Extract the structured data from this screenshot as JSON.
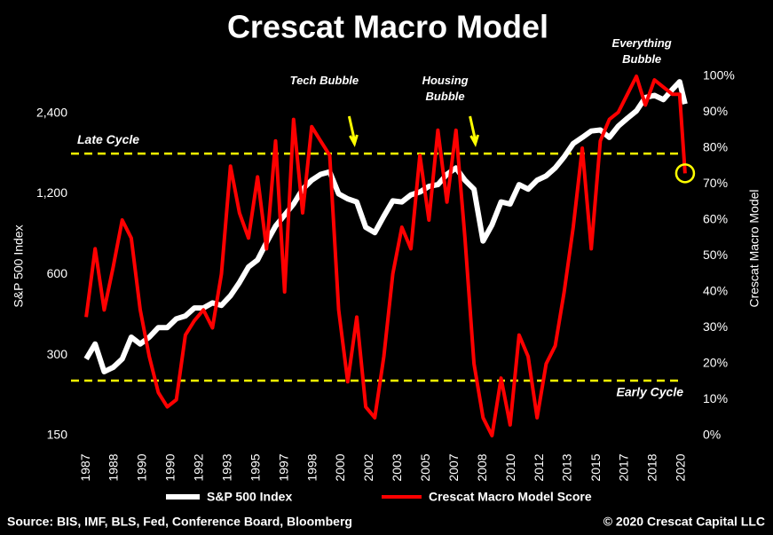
{
  "chart_data": {
    "type": "line",
    "title": "Crescat Macro Model",
    "ylabel": "S&P 500 Index",
    "y2label": "Crescat Macro Model",
    "source": "Source: BIS, IMF, BLS, Fed, Conference Board, Bloomberg",
    "copyright": "© 2020 Crescat Capital LLC",
    "yscale": "log",
    "xlim": [
      1986.8,
      2020.4
    ],
    "xticks": [
      {
        "value": 1987,
        "label": "1987"
      },
      {
        "value": 1988.57,
        "label": "1988"
      },
      {
        "value": 1990.14,
        "label": "1990"
      },
      {
        "value": 1991.71,
        "label": "1990"
      },
      {
        "value": 1993.29,
        "label": "1992"
      },
      {
        "value": 1994.86,
        "label": "1993"
      },
      {
        "value": 1996.43,
        "label": "1995"
      },
      {
        "value": 1998,
        "label": "1997"
      },
      {
        "value": 1999.57,
        "label": "1998"
      },
      {
        "value": 2001.14,
        "label": "2000"
      },
      {
        "value": 2002.71,
        "label": "2002"
      },
      {
        "value": 2004.29,
        "label": "2003"
      },
      {
        "value": 2005.86,
        "label": "2005"
      },
      {
        "value": 2007.43,
        "label": "2007"
      },
      {
        "value": 2009,
        "label": "2008"
      },
      {
        "value": 2010.57,
        "label": "2010"
      },
      {
        "value": 2012.14,
        "label": "2012"
      },
      {
        "value": 2013.71,
        "label": "2013"
      },
      {
        "value": 2015.29,
        "label": "2015"
      },
      {
        "value": 2016.86,
        "label": "2017"
      },
      {
        "value": 2018.43,
        "label": "2018"
      },
      {
        "value": 2020,
        "label": "2020"
      }
    ],
    "ylim": [
      150,
      3300
    ],
    "yticks": [
      150,
      300,
      600,
      {
        "value": 1200,
        "label": "1,200"
      },
      {
        "value": 2400,
        "label": "2,400"
      }
    ],
    "y2lim": [
      0,
      100
    ],
    "y2ticks": [
      {
        "value": 0,
        "label": "0%"
      },
      {
        "value": 10,
        "label": "10%"
      },
      {
        "value": 20,
        "label": "20%"
      },
      {
        "value": 30,
        "label": "30%"
      },
      {
        "value": 40,
        "label": "40%"
      },
      {
        "value": 50,
        "label": "50%"
      },
      {
        "value": 60,
        "label": "60%"
      },
      {
        "value": 70,
        "label": "70%"
      },
      {
        "value": 80,
        "label": "80%"
      },
      {
        "value": 90,
        "label": "90%"
      },
      {
        "value": 100,
        "label": "100%"
      }
    ],
    "x": [
      1987,
      1987.5,
      1988,
      1988.5,
      1989,
      1989.5,
      1990,
      1990.5,
      1991,
      1991.5,
      1992,
      1992.5,
      1993,
      1993.5,
      1994,
      1994.5,
      1995,
      1995.5,
      1996,
      1996.5,
      1997,
      1997.5,
      1998,
      1998.5,
      1999,
      1999.5,
      2000,
      2000.5,
      2001,
      2001.5,
      2002,
      2002.5,
      2003,
      2003.5,
      2004,
      2004.5,
      2005,
      2005.5,
      2006,
      2006.5,
      2007,
      2007.5,
      2008,
      2008.5,
      2009,
      2009.5,
      2010,
      2010.5,
      2011,
      2011.5,
      2012,
      2012.5,
      2013,
      2013.5,
      2014,
      2014.5,
      2015,
      2015.5,
      2016,
      2016.5,
      2017,
      2017.5,
      2018,
      2018.5,
      2019,
      2019.5,
      2019.9,
      2020.2
    ],
    "series": [
      {
        "name": "S&P 500 Index",
        "color": "#ffffff",
        "axis": "y",
        "values": [
          290,
          330,
          260,
          270,
          290,
          350,
          330,
          350,
          380,
          380,
          410,
          420,
          450,
          450,
          470,
          460,
          500,
          560,
          640,
          680,
          790,
          910,
          1000,
          1100,
          1250,
          1350,
          1420,
          1450,
          1200,
          1150,
          1120,
          900,
          860,
          990,
          1130,
          1120,
          1190,
          1220,
          1280,
          1300,
          1420,
          1500,
          1350,
          1250,
          800,
          920,
          1120,
          1100,
          1300,
          1250,
          1350,
          1400,
          1500,
          1650,
          1850,
          1950,
          2060,
          2080,
          1950,
          2150,
          2300,
          2450,
          2750,
          2800,
          2700,
          2950,
          3150,
          2600
        ]
      },
      {
        "name": "Crescat Macro Model Score",
        "color": "#ff0000",
        "axis": "y2",
        "values": [
          33,
          52,
          35,
          47,
          60,
          55,
          35,
          22,
          12,
          8,
          10,
          28,
          32,
          35,
          30,
          45,
          75,
          62,
          55,
          72,
          52,
          82,
          40,
          88,
          62,
          86,
          82,
          78,
          35,
          15,
          33,
          8,
          5,
          22,
          45,
          58,
          52,
          78,
          60,
          85,
          65,
          85,
          55,
          20,
          5,
          0,
          16,
          3,
          28,
          22,
          5,
          20,
          25,
          40,
          58,
          80,
          52,
          82,
          88,
          90,
          95,
          100,
          92,
          99,
          97,
          95,
          95,
          73
        ]
      }
    ],
    "reference_lines": [
      {
        "label": "Late Cycle",
        "value": 78.5,
        "color": "#ffff00"
      },
      {
        "label": "Early Cycle",
        "value": 15.3,
        "color": "#ffff00"
      }
    ],
    "annotations": [
      {
        "text": "Tech Bubble",
        "x": 2000.2
      },
      {
        "text": "Housing Bubble",
        "x": 2006.9
      },
      {
        "text": "Everything Bubble",
        "x": 2017.8
      }
    ],
    "highlight_color": "#ffff00"
  }
}
